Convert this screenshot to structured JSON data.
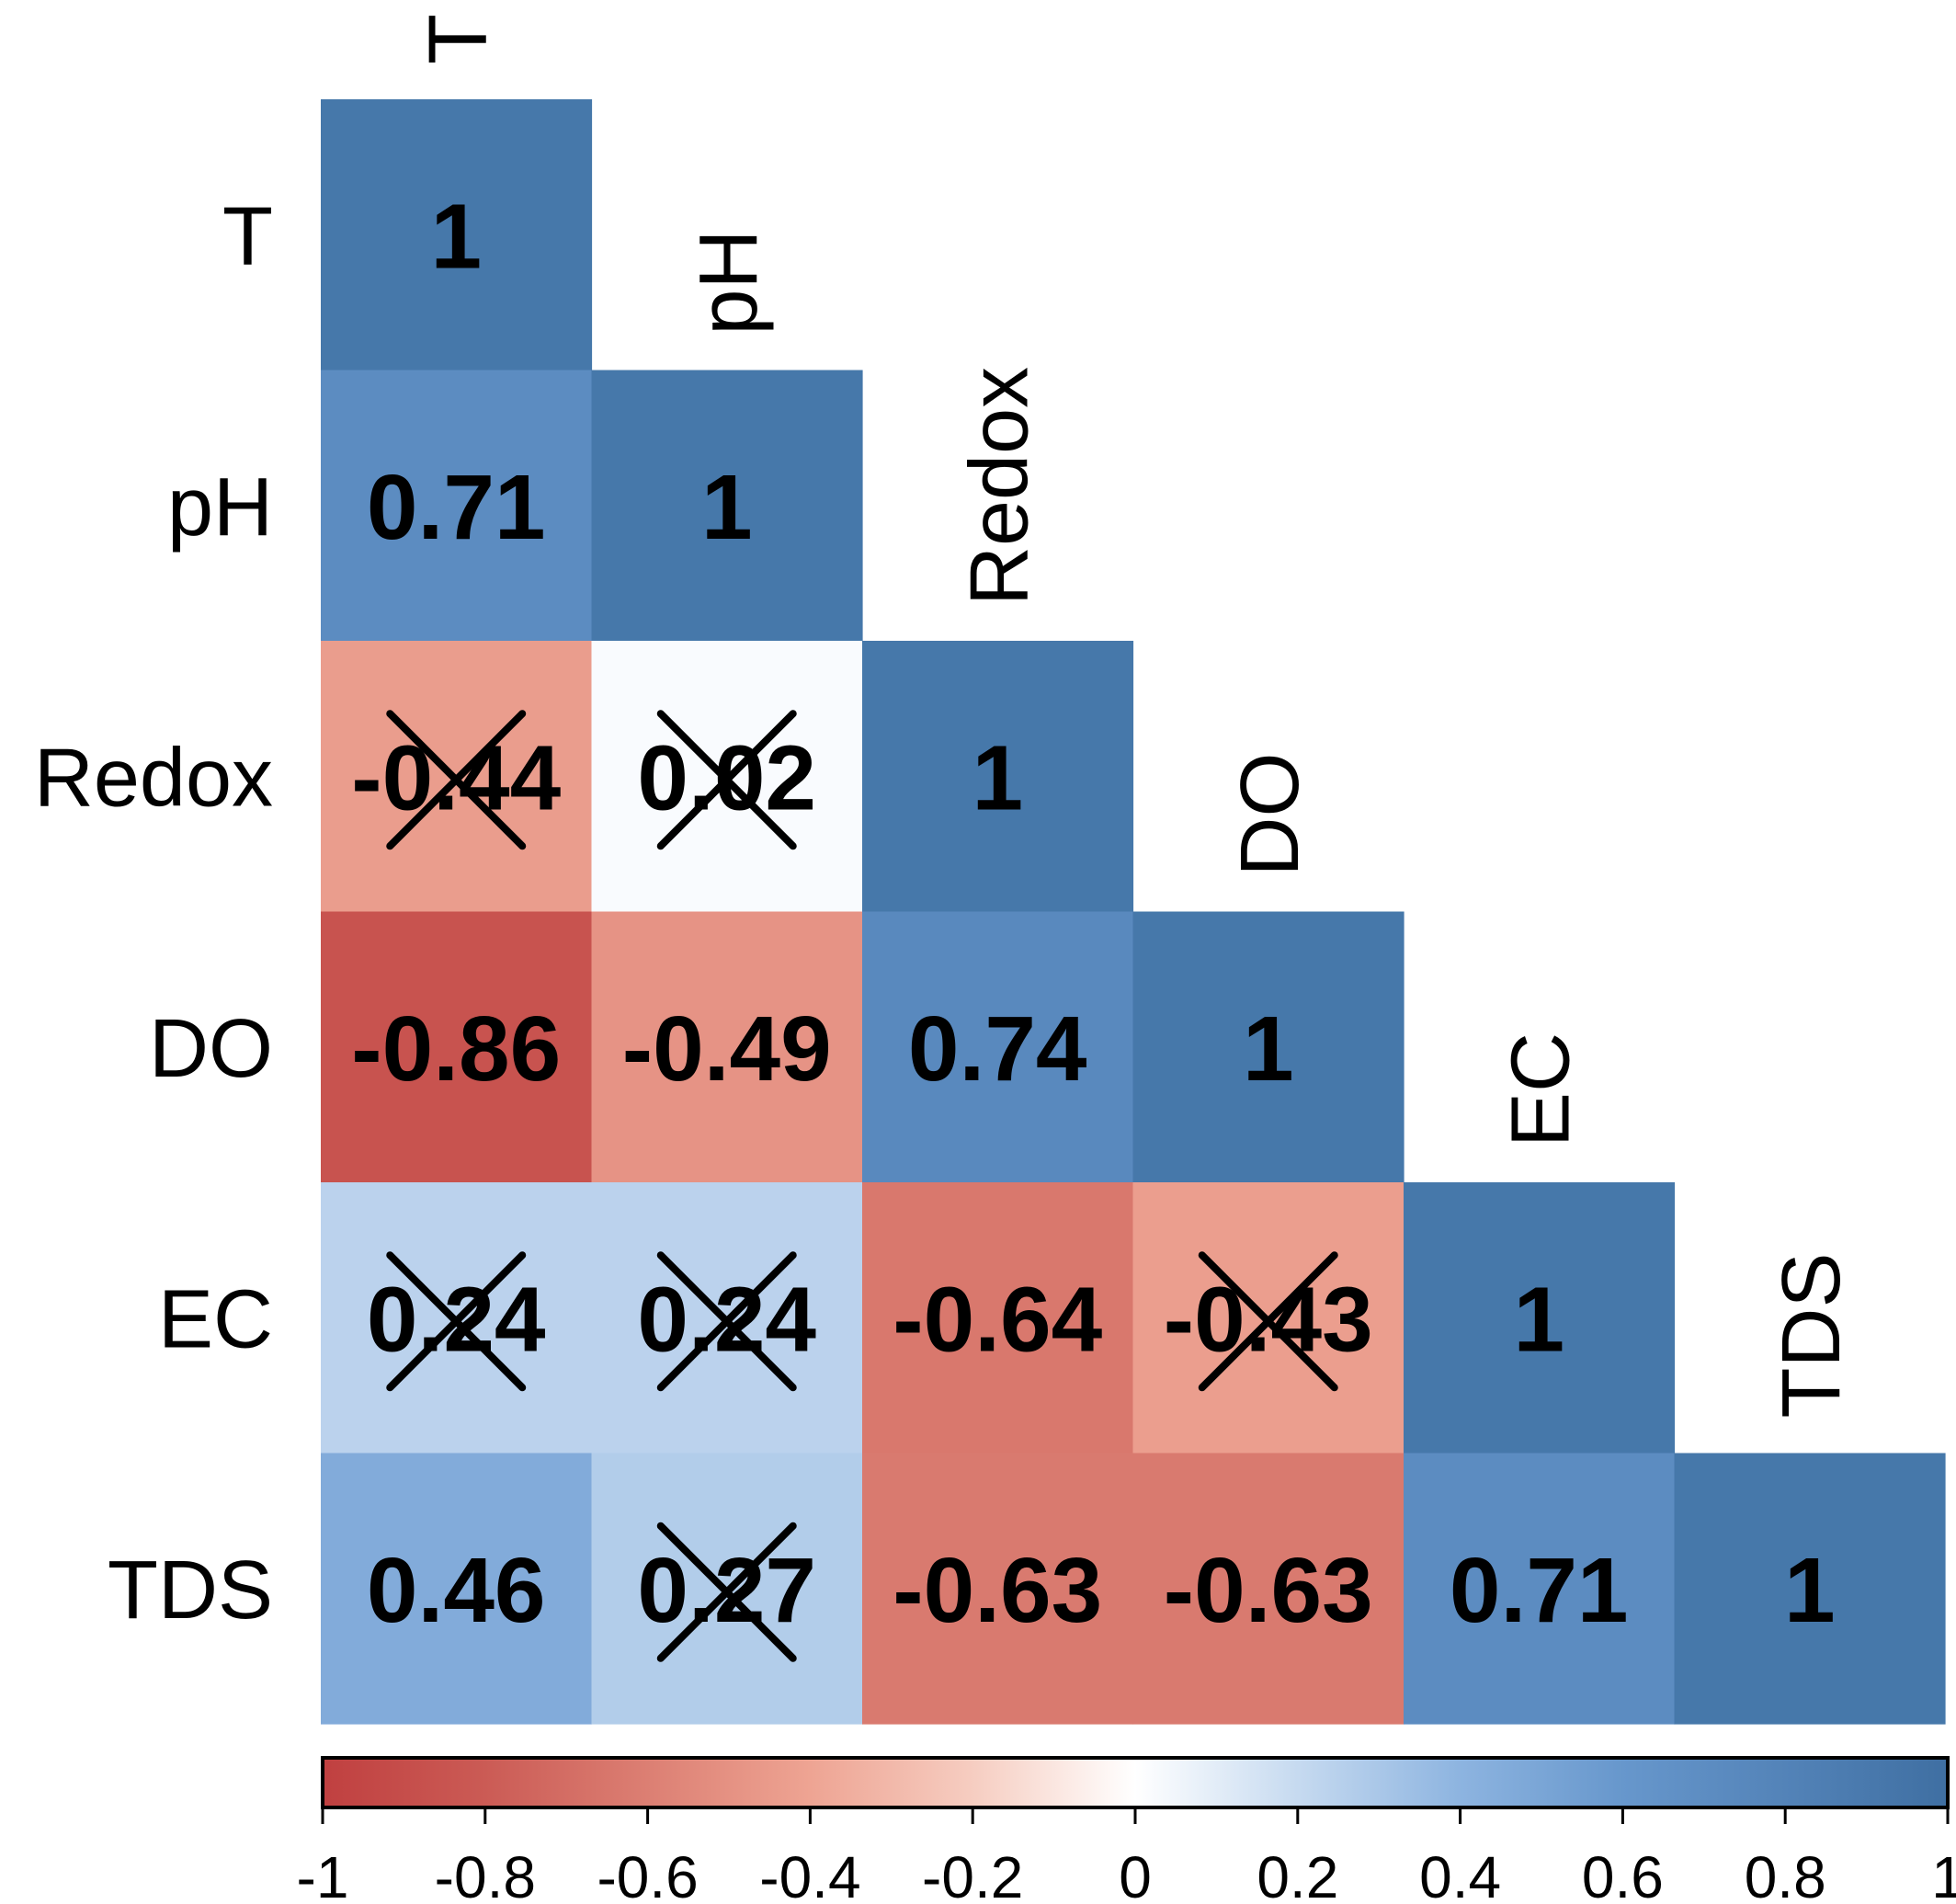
{
  "chart_data": {
    "type": "heatmap",
    "variables": [
      "T",
      "pH",
      "Redox",
      "DO",
      "EC",
      "TDS"
    ],
    "matrix_shape": "lower-triangular",
    "cells": [
      {
        "row": "T",
        "col": "T",
        "label": "1",
        "value": 1,
        "crossed": false
      },
      {
        "row": "pH",
        "col": "T",
        "label": "0.71",
        "value": 0.71,
        "crossed": false
      },
      {
        "row": "pH",
        "col": "pH",
        "label": "1",
        "value": 1,
        "crossed": false
      },
      {
        "row": "Redox",
        "col": "T",
        "label": "-0.44",
        "value": -0.44,
        "crossed": true
      },
      {
        "row": "Redox",
        "col": "pH",
        "label": "0.02",
        "value": 0.02,
        "crossed": true
      },
      {
        "row": "Redox",
        "col": "Redox",
        "label": "1",
        "value": 1,
        "crossed": false
      },
      {
        "row": "DO",
        "col": "T",
        "label": "-0.86",
        "value": -0.86,
        "crossed": false
      },
      {
        "row": "DO",
        "col": "pH",
        "label": "-0.49",
        "value": -0.49,
        "crossed": false
      },
      {
        "row": "DO",
        "col": "Redox",
        "label": "0.74",
        "value": 0.74,
        "crossed": false
      },
      {
        "row": "DO",
        "col": "DO",
        "label": "1",
        "value": 1,
        "crossed": false
      },
      {
        "row": "EC",
        "col": "T",
        "label": "0.24",
        "value": 0.24,
        "crossed": true
      },
      {
        "row": "EC",
        "col": "pH",
        "label": "0.24",
        "value": 0.24,
        "crossed": true
      },
      {
        "row": "EC",
        "col": "Redox",
        "label": "-0.64",
        "value": -0.64,
        "crossed": false
      },
      {
        "row": "EC",
        "col": "DO",
        "label": "-0.43",
        "value": -0.43,
        "crossed": true
      },
      {
        "row": "EC",
        "col": "EC",
        "label": "1",
        "value": 1,
        "crossed": false
      },
      {
        "row": "TDS",
        "col": "T",
        "label": "0.46",
        "value": 0.46,
        "crossed": false
      },
      {
        "row": "TDS",
        "col": "pH",
        "label": "0.27",
        "value": 0.27,
        "crossed": true
      },
      {
        "row": "TDS",
        "col": "Redox",
        "label": "-0.63",
        "value": -0.63,
        "crossed": false
      },
      {
        "row": "TDS",
        "col": "DO",
        "label": "-0.63",
        "value": -0.63,
        "crossed": false
      },
      {
        "row": "TDS",
        "col": "EC",
        "label": "0.71",
        "value": 0.71,
        "crossed": false
      },
      {
        "row": "TDS",
        "col": "TDS",
        "label": "1",
        "value": 1,
        "crossed": false
      }
    ],
    "colorbar": {
      "range": [
        -1,
        1
      ],
      "ticks": [
        -1,
        -0.8,
        -0.6,
        -0.4,
        -0.2,
        0,
        0.2,
        0.4,
        0.6,
        0.8,
        1
      ],
      "tick_labels": [
        "-1",
        "-0.8",
        "-0.6",
        "-0.4",
        "-0.2",
        "0",
        "0.2",
        "0.4",
        "0.6",
        "0.8",
        "1"
      ],
      "orientation": "horizontal",
      "placement": "bottom"
    },
    "color_scale": {
      "negative": "#C65A55",
      "mid": "#FFFFFF",
      "positive": "#4678AA"
    },
    "title": "",
    "xlabel": "",
    "ylabel": ""
  }
}
